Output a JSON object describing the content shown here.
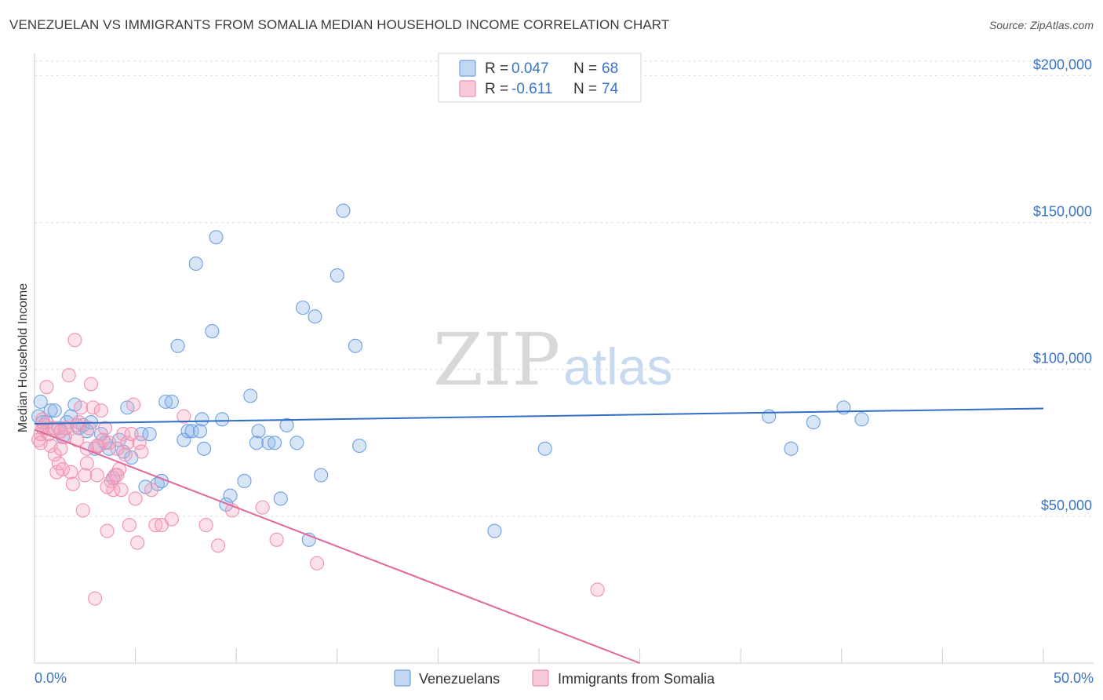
{
  "title": "VENEZUELAN VS IMMIGRANTS FROM SOMALIA MEDIAN HOUSEHOLD INCOME CORRELATION CHART",
  "source": "Source: ZipAtlas.com",
  "watermark": {
    "zip": "ZIP",
    "atlas": "atlas"
  },
  "legend": {
    "rows": [
      {
        "r_label": "R =",
        "r_value": "0.047",
        "n_label": "N =",
        "n_value": "68"
      },
      {
        "r_label": "R =",
        "r_value": "-0.611",
        "n_label": "N =",
        "n_value": "74"
      }
    ]
  },
  "bottom_legend": [
    "Venezuelans",
    "Immigrants from Somalia"
  ],
  "chart_data": {
    "type": "scatter",
    "title": "VENEZUELAN VS IMMIGRANTS FROM SOMALIA MEDIAN HOUSEHOLD INCOME CORRELATION CHART",
    "xlabel": "",
    "ylabel": "Median Household Income",
    "xlim": [
      0,
      50
    ],
    "ylim": [
      0,
      210000
    ],
    "x_tick_labels": [
      "0.0%",
      "50.0%"
    ],
    "y_ticks": [
      50000,
      100000,
      150000,
      200000
    ],
    "y_tick_labels": [
      "$50,000",
      "$100,000",
      "$150,000",
      "$200,000"
    ],
    "grid": "horizontal dashed",
    "legend_position": "top-center",
    "series": [
      {
        "name": "Venezuelans",
        "color": "#6fa0e0",
        "fill": "rgba(143,181,232,0.35)",
        "trend": {
          "x": [
            0,
            50
          ],
          "y": [
            81500,
            86700
          ]
        },
        "points": [
          [
            0.2,
            84000
          ],
          [
            0.3,
            89000
          ],
          [
            0.4,
            82000
          ],
          [
            0.6,
            82000
          ],
          [
            0.8,
            86000
          ],
          [
            1.0,
            86000
          ],
          [
            1.2,
            80000
          ],
          [
            1.4,
            77000
          ],
          [
            1.6,
            82000
          ],
          [
            1.8,
            84000
          ],
          [
            2.0,
            88000
          ],
          [
            2.2,
            80000
          ],
          [
            2.4,
            81000
          ],
          [
            2.6,
            79000
          ],
          [
            2.8,
            82000
          ],
          [
            3.0,
            73000
          ],
          [
            3.3,
            78000
          ],
          [
            3.5,
            75000
          ],
          [
            3.7,
            73000
          ],
          [
            3.9,
            63000
          ],
          [
            4.2,
            76000
          ],
          [
            4.4,
            72000
          ],
          [
            4.6,
            87000
          ],
          [
            4.8,
            70000
          ],
          [
            5.3,
            78000
          ],
          [
            5.5,
            60000
          ],
          [
            5.7,
            78000
          ],
          [
            6.1,
            61000
          ],
          [
            6.3,
            62000
          ],
          [
            6.5,
            89000
          ],
          [
            6.8,
            89000
          ],
          [
            7.1,
            108000
          ],
          [
            7.4,
            76000
          ],
          [
            7.6,
            79000
          ],
          [
            7.8,
            79000
          ],
          [
            8.0,
            136000
          ],
          [
            8.3,
            83000
          ],
          [
            8.2,
            79000
          ],
          [
            8.4,
            73000
          ],
          [
            8.8,
            113000
          ],
          [
            9.0,
            145000
          ],
          [
            9.3,
            83000
          ],
          [
            9.5,
            54000
          ],
          [
            9.7,
            57000
          ],
          [
            10.4,
            62000
          ],
          [
            10.7,
            91000
          ],
          [
            11.0,
            75000
          ],
          [
            11.1,
            79000
          ],
          [
            11.6,
            75000
          ],
          [
            11.9,
            75000
          ],
          [
            12.2,
            56000
          ],
          [
            12.5,
            81000
          ],
          [
            13.0,
            75000
          ],
          [
            13.3,
            121000
          ],
          [
            13.6,
            42000
          ],
          [
            13.9,
            118000
          ],
          [
            14.2,
            64000
          ],
          [
            15.0,
            132000
          ],
          [
            15.3,
            154000
          ],
          [
            15.9,
            108000
          ],
          [
            16.1,
            74000
          ],
          [
            22.8,
            45000
          ],
          [
            25.3,
            73000
          ],
          [
            36.4,
            84000
          ],
          [
            37.5,
            73000
          ],
          [
            38.6,
            82000
          ],
          [
            40.1,
            87000
          ],
          [
            41.0,
            83000
          ]
        ]
      },
      {
        "name": "Immigrants from Somalia",
        "color": "#f090b0",
        "fill": "rgba(244,170,195,0.35)",
        "trend": {
          "x": [
            0,
            30
          ],
          "y": [
            79500,
            0
          ]
        },
        "points": [
          [
            0.2,
            76000
          ],
          [
            0.3,
            78000
          ],
          [
            0.4,
            80000
          ],
          [
            0.5,
            81000
          ],
          [
            0.6,
            94000
          ],
          [
            0.7,
            78000
          ],
          [
            0.8,
            74000
          ],
          [
            0.9,
            80000
          ],
          [
            1.0,
            71000
          ],
          [
            1.1,
            65000
          ],
          [
            1.2,
            68000
          ],
          [
            1.3,
            73000
          ],
          [
            1.4,
            66000
          ],
          [
            1.5,
            77000
          ],
          [
            1.6,
            80000
          ],
          [
            1.7,
            98000
          ],
          [
            1.8,
            65000
          ],
          [
            1.9,
            61000
          ],
          [
            2.0,
            110000
          ],
          [
            2.1,
            76000
          ],
          [
            2.2,
            82000
          ],
          [
            2.3,
            87000
          ],
          [
            2.4,
            52000
          ],
          [
            2.5,
            64000
          ],
          [
            2.6,
            68000
          ],
          [
            2.7,
            80000
          ],
          [
            2.8,
            95000
          ],
          [
            2.9,
            87000
          ],
          [
            3.0,
            22000
          ],
          [
            3.1,
            64000
          ],
          [
            3.2,
            74000
          ],
          [
            3.3,
            86000
          ],
          [
            3.4,
            76000
          ],
          [
            3.5,
            80000
          ],
          [
            3.6,
            45000
          ],
          [
            3.7,
            75000
          ],
          [
            3.8,
            62000
          ],
          [
            3.9,
            59000
          ],
          [
            4.0,
            64000
          ],
          [
            4.1,
            73000
          ],
          [
            4.2,
            66000
          ],
          [
            4.3,
            59000
          ],
          [
            4.4,
            78000
          ],
          [
            4.5,
            71000
          ],
          [
            4.6,
            75000
          ],
          [
            4.7,
            47000
          ],
          [
            4.8,
            78000
          ],
          [
            4.9,
            88000
          ],
          [
            5.0,
            56000
          ],
          [
            5.1,
            41000
          ],
          [
            5.2,
            75000
          ],
          [
            5.3,
            72000
          ],
          [
            5.8,
            59000
          ],
          [
            6.0,
            47000
          ],
          [
            6.3,
            47000
          ],
          [
            6.8,
            49000
          ],
          [
            7.4,
            84000
          ],
          [
            8.5,
            47000
          ],
          [
            9.1,
            40000
          ],
          [
            9.8,
            52000
          ],
          [
            11.3,
            53000
          ],
          [
            12.0,
            42000
          ],
          [
            14.0,
            34000
          ],
          [
            27.9,
            25000
          ],
          [
            0.4,
            83000
          ],
          [
            1.0,
            80000
          ],
          [
            1.5,
            80000
          ],
          [
            2.1,
            81000
          ],
          [
            2.6,
            73000
          ],
          [
            3.1,
            74000
          ],
          [
            3.6,
            60000
          ],
          [
            4.1,
            64000
          ],
          [
            0.3,
            75000
          ],
          [
            1.3,
            79000
          ]
        ]
      }
    ]
  }
}
